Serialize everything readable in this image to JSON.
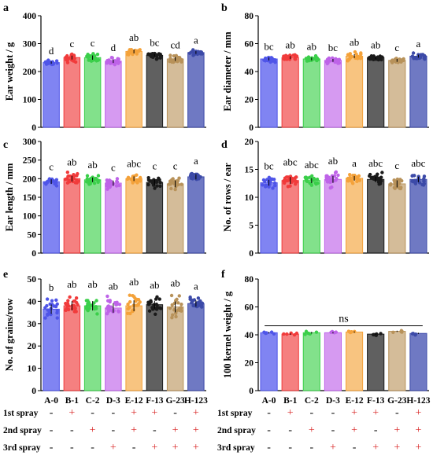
{
  "groups": [
    "A-0",
    "B-1",
    "C-2",
    "D-3",
    "E-12",
    "F-13",
    "G-23",
    "H-123"
  ],
  "colors": [
    "#4f55e8",
    "#f13b3b",
    "#3bcf4a",
    "#be63e8",
    "#f4a23a",
    "#1a1a1a",
    "#b8925a",
    "#3c4aa8"
  ],
  "bar_colors": [
    "#6a6ff0",
    "#f36a6a",
    "#6cdc77",
    "#cf88ee",
    "#f7ba6a",
    "#444444",
    "#cdb087",
    "#5662b8"
  ],
  "treatments": [
    {
      "label": "1st spray",
      "marks": [
        "-",
        "+",
        "-",
        "-",
        "+",
        "+",
        "-",
        "+"
      ]
    },
    {
      "label": "2nd spray",
      "marks": [
        "-",
        "-",
        "+",
        "-",
        "+",
        "-",
        "+",
        "+"
      ]
    },
    {
      "label": "3rd spray",
      "marks": [
        "-",
        "-",
        "-",
        "+",
        "-",
        "+",
        "+",
        "+"
      ]
    }
  ],
  "chart_data": [
    {
      "type": "bar",
      "panel": "a",
      "title": "",
      "xlabel": "",
      "ylabel": "Ear weight / g",
      "ylim": [
        0,
        400
      ],
      "yticks": [
        0,
        100,
        200,
        300,
        400
      ],
      "categories": [
        "A-0",
        "B-1",
        "C-2",
        "D-3",
        "E-12",
        "F-13",
        "G-23",
        "H-123"
      ],
      "values": [
        232,
        250,
        250,
        237,
        272,
        258,
        245,
        268
      ],
      "spread": [
        12,
        20,
        22,
        18,
        20,
        16,
        20,
        14
      ],
      "letters": [
        "d",
        "c",
        "c",
        "d",
        "ab",
        "bc",
        "cd",
        "a"
      ]
    },
    {
      "type": "bar",
      "panel": "b",
      "title": "",
      "xlabel": "",
      "ylabel": "Ear diameter / mm",
      "ylim": [
        0,
        80
      ],
      "yticks": [
        0,
        20,
        40,
        60,
        80
      ],
      "categories": [
        "A-0",
        "B-1",
        "C-2",
        "D-3",
        "E-12",
        "F-13",
        "G-23",
        "H-123"
      ],
      "values": [
        49,
        50,
        49,
        48,
        51,
        50,
        48,
        51
      ],
      "spread": [
        3,
        3,
        3,
        3,
        4,
        3,
        3,
        3
      ],
      "letters": [
        "bc",
        "ab",
        "ab",
        "bc",
        "ab",
        "ab",
        "c",
        "a"
      ]
    },
    {
      "type": "bar",
      "panel": "c",
      "title": "",
      "xlabel": "",
      "ylabel": "Ear length / mm",
      "ylim": [
        0,
        300
      ],
      "yticks": [
        0,
        50,
        100,
        150,
        200,
        250,
        300
      ],
      "categories": [
        "A-0",
        "B-1",
        "C-2",
        "D-3",
        "E-12",
        "F-13",
        "G-23",
        "H-123"
      ],
      "values": [
        192,
        200,
        197,
        188,
        200,
        190,
        186,
        205
      ],
      "spread": [
        18,
        22,
        18,
        20,
        18,
        22,
        26,
        20
      ],
      "letters": [
        "c",
        "ab",
        "ab",
        "c",
        "abc",
        "c",
        "c",
        "a"
      ]
    },
    {
      "type": "bar",
      "panel": "d",
      "title": "",
      "xlabel": "",
      "ylabel": "No. of rows / ear",
      "ylim": [
        0,
        20
      ],
      "yticks": [
        0,
        5,
        10,
        15,
        20
      ],
      "categories": [
        "A-0",
        "B-1",
        "C-2",
        "D-3",
        "E-12",
        "F-13",
        "G-23",
        "H-123"
      ],
      "values": [
        12.6,
        13.0,
        13.0,
        13.2,
        13.4,
        13.2,
        12.4,
        13.2
      ],
      "spread": [
        1.5,
        1.8,
        1.3,
        1.8,
        1.2,
        1.4,
        1.8,
        1.4
      ],
      "letters": [
        "bc",
        "abc",
        "abc",
        "ab",
        "a",
        "abc",
        "c",
        "abc"
      ]
    },
    {
      "type": "bar",
      "panel": "e",
      "title": "",
      "xlabel": "",
      "ylabel": "No. of grains/row",
      "ylim": [
        0,
        50
      ],
      "yticks": [
        0,
        10,
        20,
        30,
        40,
        50
      ],
      "categories": [
        "A-0",
        "B-1",
        "C-2",
        "D-3",
        "E-12",
        "F-13",
        "G-23",
        "H-123"
      ],
      "values": [
        36.5,
        38,
        38,
        37,
        38,
        38.5,
        37.5,
        39
      ],
      "spread": [
        6,
        6,
        6,
        6,
        7,
        5,
        7,
        4
      ],
      "letters": [
        "b",
        "ab",
        "ab",
        "ab",
        "ab",
        "ab",
        "ab",
        "a"
      ]
    },
    {
      "type": "bar",
      "panel": "f",
      "title": "",
      "xlabel": "",
      "ylabel": "100 kernel weight / g",
      "ylim": [
        0,
        80
      ],
      "yticks": [
        0,
        20,
        40,
        60,
        80
      ],
      "categories": [
        "A-0",
        "B-1",
        "C-2",
        "D-3",
        "E-12",
        "F-13",
        "G-23",
        "H-123"
      ],
      "values": [
        41.5,
        40.5,
        41.5,
        41.5,
        42,
        40.5,
        42.5,
        41
      ],
      "spread": [
        1.5,
        1.5,
        1.8,
        1.5,
        1.3,
        1.3,
        1.3,
        1.3
      ],
      "letters": [
        "",
        "",
        "",
        "",
        "",
        "",
        "",
        ""
      ],
      "annotation": "ns"
    }
  ]
}
